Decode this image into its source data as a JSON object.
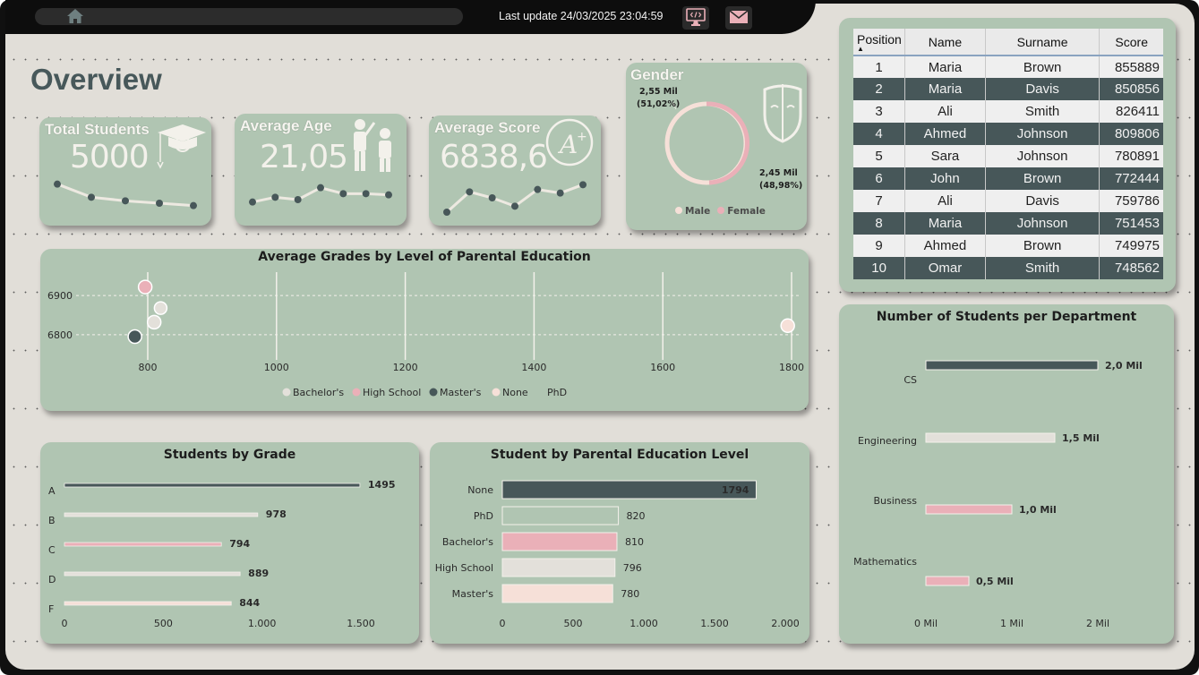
{
  "header": {
    "last_update": "Last update 24/03/2025 23:04:59",
    "icons": [
      "home-icon",
      "code-monitor-icon",
      "mail-icon"
    ]
  },
  "page_title": "Overview",
  "kpis": [
    {
      "label": "Total Students",
      "value": "5000",
      "icon": "graduation-cap-icon",
      "sparkline": [
        58,
        47,
        44,
        42,
        40
      ]
    },
    {
      "label": "Average Age",
      "value": "21,05",
      "icon": "teacher-student-icon",
      "sparkline": [
        40,
        44,
        42,
        52,
        47,
        47,
        46
      ]
    },
    {
      "label": "Average Score",
      "value": "6838,6",
      "icon": "grade-a-plus-icon",
      "sparkline": [
        33,
        50,
        45,
        38,
        52,
        49,
        56
      ]
    }
  ],
  "colors": {
    "card": "#b0c5b2",
    "dark": "#475759",
    "pink": "#eab0b8",
    "light": "#e3e0da",
    "peach": "#f6e0d8",
    "bachelors": "#e3e0da",
    "high_school": "#eab0b8",
    "masters": "#475759",
    "none": "#f6e0d8"
  },
  "gender": {
    "title": "Gender",
    "male_label": "2,55 Mil",
    "male_pct": "(51,02%)",
    "female_label": "2,45 Mil",
    "female_pct": "(48,98%)",
    "legend": [
      "Male",
      "Female"
    ]
  },
  "top_students": {
    "columns": [
      "Position",
      "Name",
      "Surname",
      "Score"
    ],
    "rows": [
      [
        "1",
        "Maria",
        "Brown",
        "855889"
      ],
      [
        "2",
        "Maria",
        "Davis",
        "850856"
      ],
      [
        "3",
        "Ali",
        "Smith",
        "826411"
      ],
      [
        "4",
        "Ahmed",
        "Johnson",
        "809806"
      ],
      [
        "5",
        "Sara",
        "Johnson",
        "780891"
      ],
      [
        "6",
        "John",
        "Brown",
        "772444"
      ],
      [
        "7",
        "Ali",
        "Davis",
        "759786"
      ],
      [
        "8",
        "Maria",
        "Johnson",
        "751453"
      ],
      [
        "9",
        "Ahmed",
        "Brown",
        "749975"
      ],
      [
        "10",
        "Omar",
        "Smith",
        "748562"
      ]
    ]
  },
  "chart_data": [
    {
      "type": "scatter",
      "title": "Average Grades by Level of Parental Education",
      "xlim": [
        700,
        1800
      ],
      "ylim": [
        6740,
        6960
      ],
      "xticks": [
        "800",
        "1000",
        "1200",
        "1400",
        "1600",
        "1800"
      ],
      "yticks": [
        "6800",
        "6900"
      ],
      "series": [
        {
          "name": "Bachelor's",
          "x": 810,
          "y": 6832,
          "color": "#e3e0da"
        },
        {
          "name": "High School",
          "x": 796,
          "y": 6922,
          "color": "#eab0b8"
        },
        {
          "name": "Master's",
          "x": 780,
          "y": 6795,
          "color": "#475759"
        },
        {
          "name": "None",
          "x": 1794,
          "y": 6823,
          "color": "#f6e0d8"
        },
        {
          "name": "PhD",
          "x": 820,
          "y": 6868,
          "color": "#e3e0da"
        }
      ],
      "legend": [
        "Bachelor's",
        "High School",
        "Master's",
        "None",
        "PhD"
      ]
    },
    {
      "type": "bar",
      "orientation": "horizontal",
      "title": "Students by Grade",
      "categories": [
        "A",
        "B",
        "C",
        "D",
        "F"
      ],
      "values": [
        1495,
        978,
        794,
        889,
        844
      ],
      "xlim": [
        0,
        1500
      ],
      "xticks": [
        "0",
        "500",
        "1.000",
        "1.500"
      ]
    },
    {
      "type": "bar",
      "orientation": "horizontal",
      "title": "Student by Parental Education Level",
      "categories": [
        "None",
        "PhD",
        "Bachelor's",
        "High School",
        "Master's"
      ],
      "values": [
        1794,
        820,
        810,
        796,
        780
      ],
      "xlim": [
        0,
        2000
      ],
      "xticks": [
        "0",
        "500",
        "1.000",
        "1.500",
        "2.000"
      ]
    },
    {
      "type": "bar",
      "orientation": "horizontal",
      "title": "Number of Students per Department",
      "categories": [
        "CS",
        "Engineering",
        "Business",
        "Mathematics"
      ],
      "values": [
        2.0,
        1.5,
        1.0,
        0.5
      ],
      "value_labels": [
        "2,0 Mil",
        "1,5 Mil",
        "1,0 Mil",
        "0,5 Mil"
      ],
      "xlim": [
        0,
        2.0
      ],
      "xticks": [
        "0 Mil",
        "1 Mil",
        "2 Mil"
      ]
    }
  ]
}
